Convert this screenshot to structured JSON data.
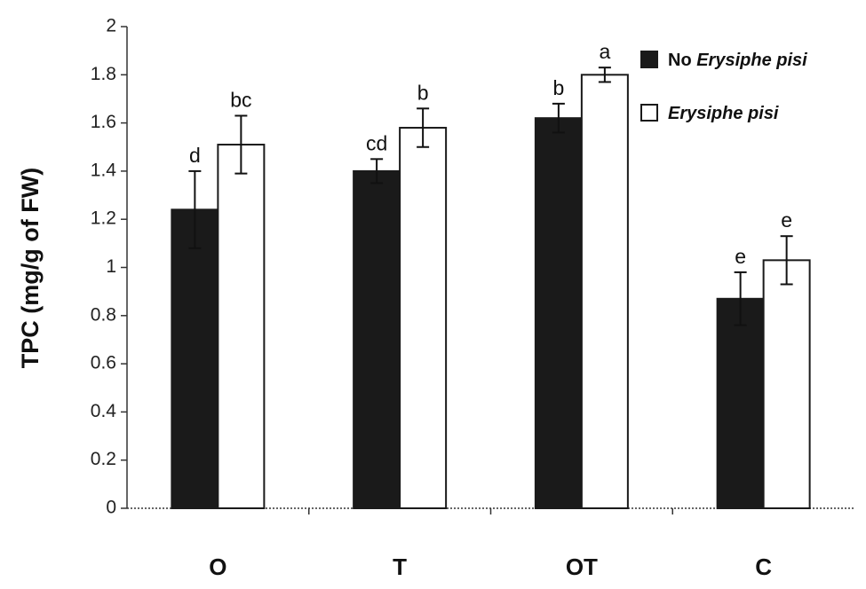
{
  "chart_data": {
    "type": "bar",
    "categories": [
      "O",
      "T",
      "OT",
      "C"
    ],
    "series": [
      {
        "name": "No Erysiphe pisi",
        "name_plain": "No",
        "name_italic": "Erysiphe pisi",
        "color": "#1a1a1a",
        "values": [
          1.24,
          1.4,
          1.62,
          0.87
        ],
        "errors": [
          0.16,
          0.05,
          0.06,
          0.11
        ],
        "letters": [
          "d",
          "cd",
          "b",
          "e"
        ]
      },
      {
        "name": "Erysiphe pisi",
        "name_plain": "",
        "name_italic": "Erysiphe pisi",
        "color": "#ffffff",
        "values": [
          1.51,
          1.58,
          1.8,
          1.03
        ],
        "errors": [
          0.12,
          0.08,
          0.03,
          0.1
        ],
        "letters": [
          "bc",
          "b",
          "a",
          "e"
        ]
      }
    ],
    "ylabel": "TPC (mg/g of FW)",
    "xlabel": "",
    "title": "",
    "ylim": [
      0,
      2
    ],
    "yticks": [
      "0",
      "0.2",
      "0.4",
      "0.6",
      "0.8",
      "1",
      "1.2",
      "1.4",
      "1.6",
      "1.8",
      "2"
    ],
    "grid": false,
    "legend_position": "top-right"
  }
}
